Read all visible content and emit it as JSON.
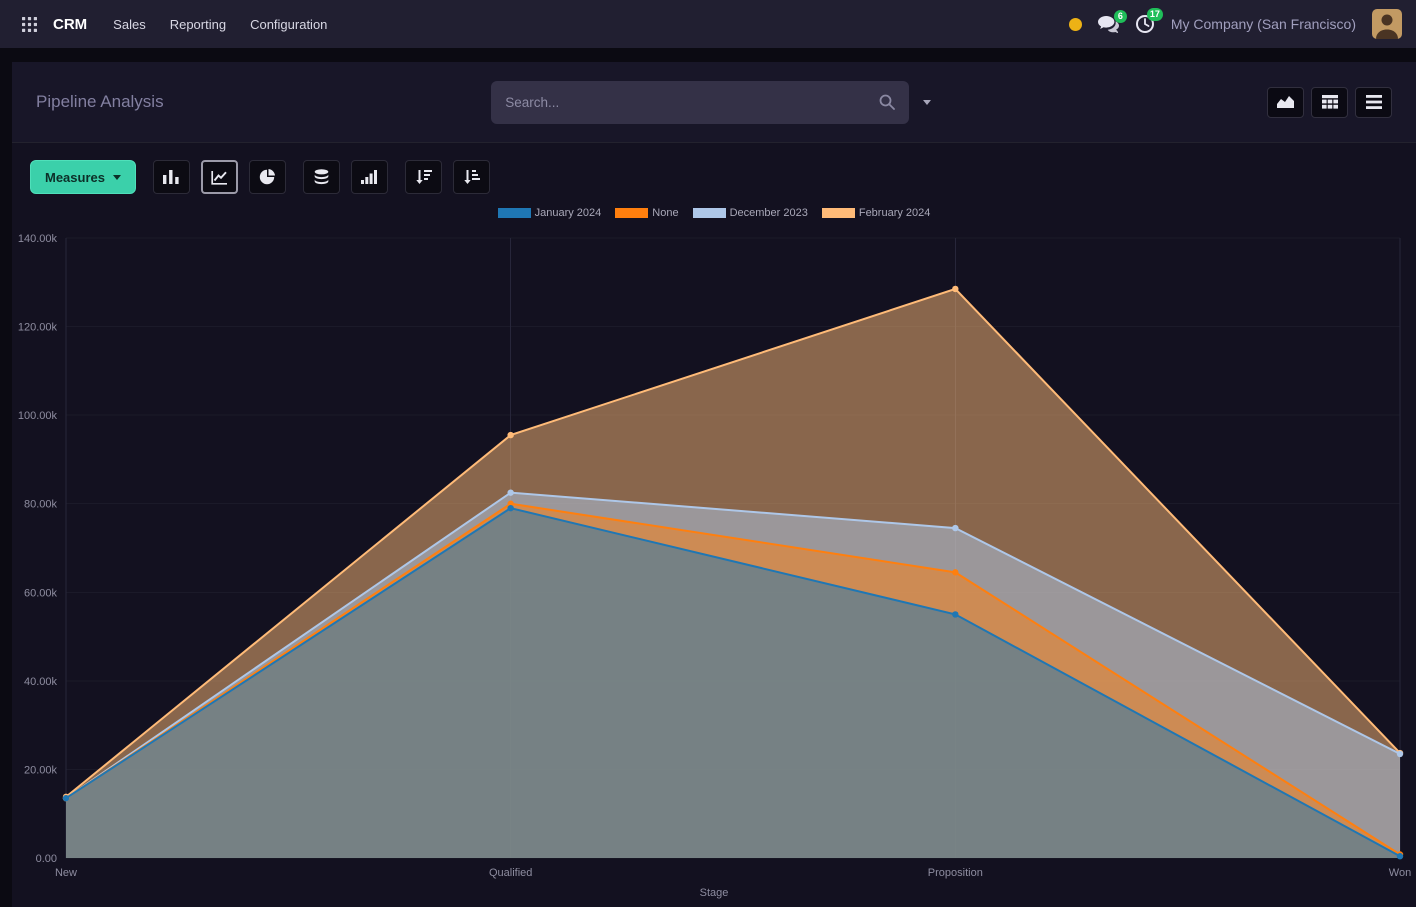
{
  "navbar": {
    "app_name": "CRM",
    "menu_items": [
      "Sales",
      "Reporting",
      "Configuration"
    ],
    "message_badge": "6",
    "activity_badge": "17",
    "company_name": "My Company (San Francisco)"
  },
  "control_panel": {
    "title": "Pipeline Analysis",
    "search_placeholder": "Search..."
  },
  "toolbar": {
    "measures_label": "Measures"
  },
  "colors": {
    "accent_teal": "#3bd0aa",
    "badge_green": "#1fbe59",
    "amber_dot": "#edb215"
  },
  "icons": {
    "apps-grid-icon": "3x3-dot-grid",
    "chat-bubbles-icon": "speech-bubbles",
    "clock-icon": "clock",
    "search-icon": "magnifier",
    "caret-down-icon": "triangle-down",
    "graph-view-icon": "area-chart",
    "pivot-view-icon": "table-grid",
    "list-view-icon": "stacked-lines",
    "bar-chart-icon": "vertical-bars",
    "line-chart-icon": "line-in-axes",
    "pie-chart-icon": "pie",
    "stacked-icon": "database-stack",
    "cumulative-icon": "ascending-bars",
    "sort-desc-icon": "down-arrow-with-bars",
    "sort-asc-icon": "down-arrow-with-bars-reversed"
  },
  "chart_data": {
    "type": "area",
    "title": "Pipeline Analysis",
    "x": [
      "New",
      "Qualified",
      "Proposition",
      "Won"
    ],
    "xlabel": "Stage",
    "ylabel": "",
    "ylim": [
      0,
      140000
    ],
    "grid": true,
    "legend_position": "top",
    "yticks": [
      {
        "value": 0,
        "label": "0.00"
      },
      {
        "value": 20000,
        "label": "20.00k"
      },
      {
        "value": 40000,
        "label": "40.00k"
      },
      {
        "value": 60000,
        "label": "60.00k"
      },
      {
        "value": 80000,
        "label": "80.00k"
      },
      {
        "value": 100000,
        "label": "100.00k"
      },
      {
        "value": 120000,
        "label": "120.00k"
      },
      {
        "value": 140000,
        "label": "140.00k"
      }
    ],
    "series": [
      {
        "name": "January 2024",
        "color": "#1f77b4",
        "values": [
          13500,
          79000,
          55000,
          400
        ]
      },
      {
        "name": "None",
        "color": "#ff7f0e",
        "values": [
          13500,
          80000,
          64500,
          800
        ]
      },
      {
        "name": "December 2023",
        "color": "#aec7e8",
        "values": [
          13500,
          82500,
          74500,
          23500
        ]
      },
      {
        "name": "February 2024",
        "color": "#ffbb78",
        "values": [
          13800,
          95500,
          128500,
          23700
        ]
      }
    ]
  }
}
